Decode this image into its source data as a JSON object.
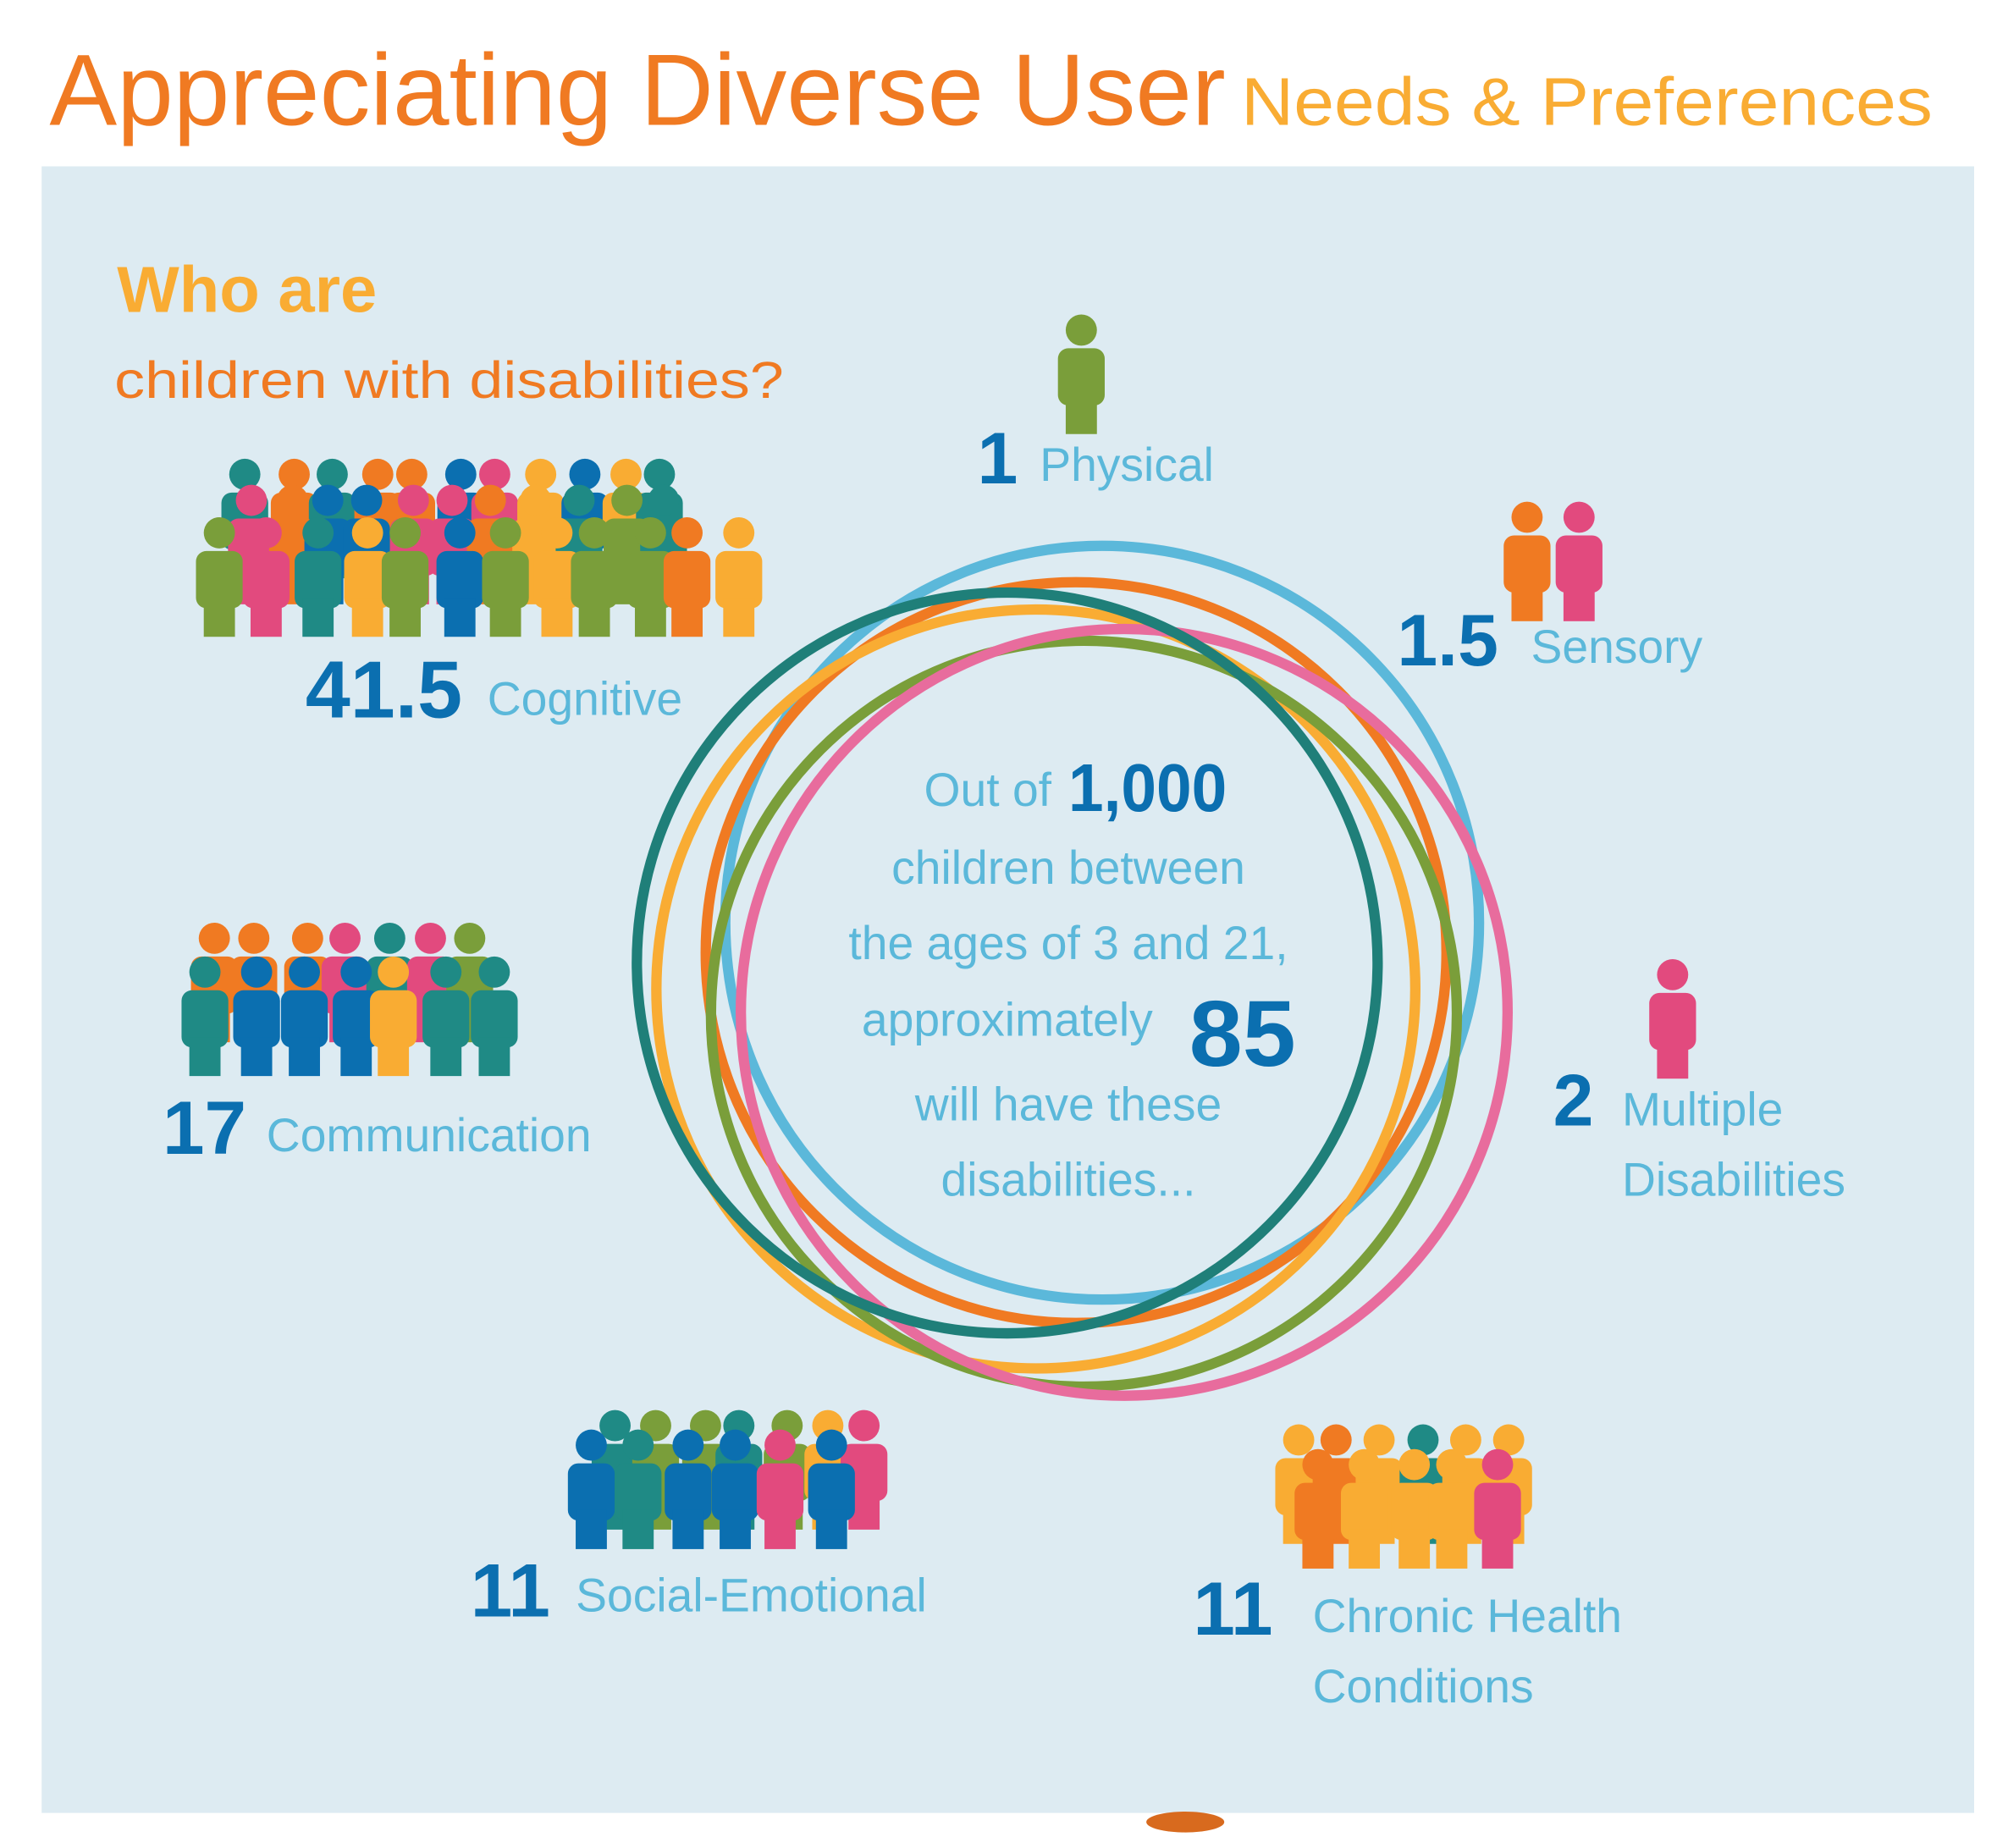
{
  "title": {
    "main": "Appreciating Diverse User",
    "sub": "Needs & Preferences"
  },
  "question": {
    "line1": "Who are",
    "line2": "children with disabilities?"
  },
  "center": {
    "out_of": "Out of",
    "total": "1,000",
    "line2": "children between",
    "line3": "the ages of 3 and 21,",
    "line4": "approximately",
    "count": "85",
    "line5": "will have these",
    "line6": "disabilities..."
  },
  "categories": [
    {
      "value": "1",
      "label": "Physical"
    },
    {
      "value": "1.5",
      "label": "Sensory"
    },
    {
      "value": "41.5",
      "label": "Cognitive"
    },
    {
      "value": "17",
      "label": "Communication"
    },
    {
      "value": "2",
      "label": "Multiple",
      "label2": "Disabilities"
    },
    {
      "value": "11",
      "label": "Social-Emotional"
    },
    {
      "value": "11",
      "label": "Chronic Health",
      "label2": "Conditions"
    }
  ],
  "colors": {
    "title_orange": "#F07A22",
    "title_yellow": "#F9AC33",
    "panel": "#DDEBF2",
    "number_blue": "#0B6FB0",
    "label_blue": "#5BB8DA",
    "ring_colors": [
      "#5BB8DA",
      "#F07A22",
      "#F9AC33",
      "#7A9E3A",
      "#E86C9D",
      "#1F7F79"
    ],
    "people_palette": [
      "#F9AC33",
      "#1F8A85",
      "#F07A22",
      "#E24A7E",
      "#0B6FB0",
      "#7A9E3A"
    ]
  }
}
